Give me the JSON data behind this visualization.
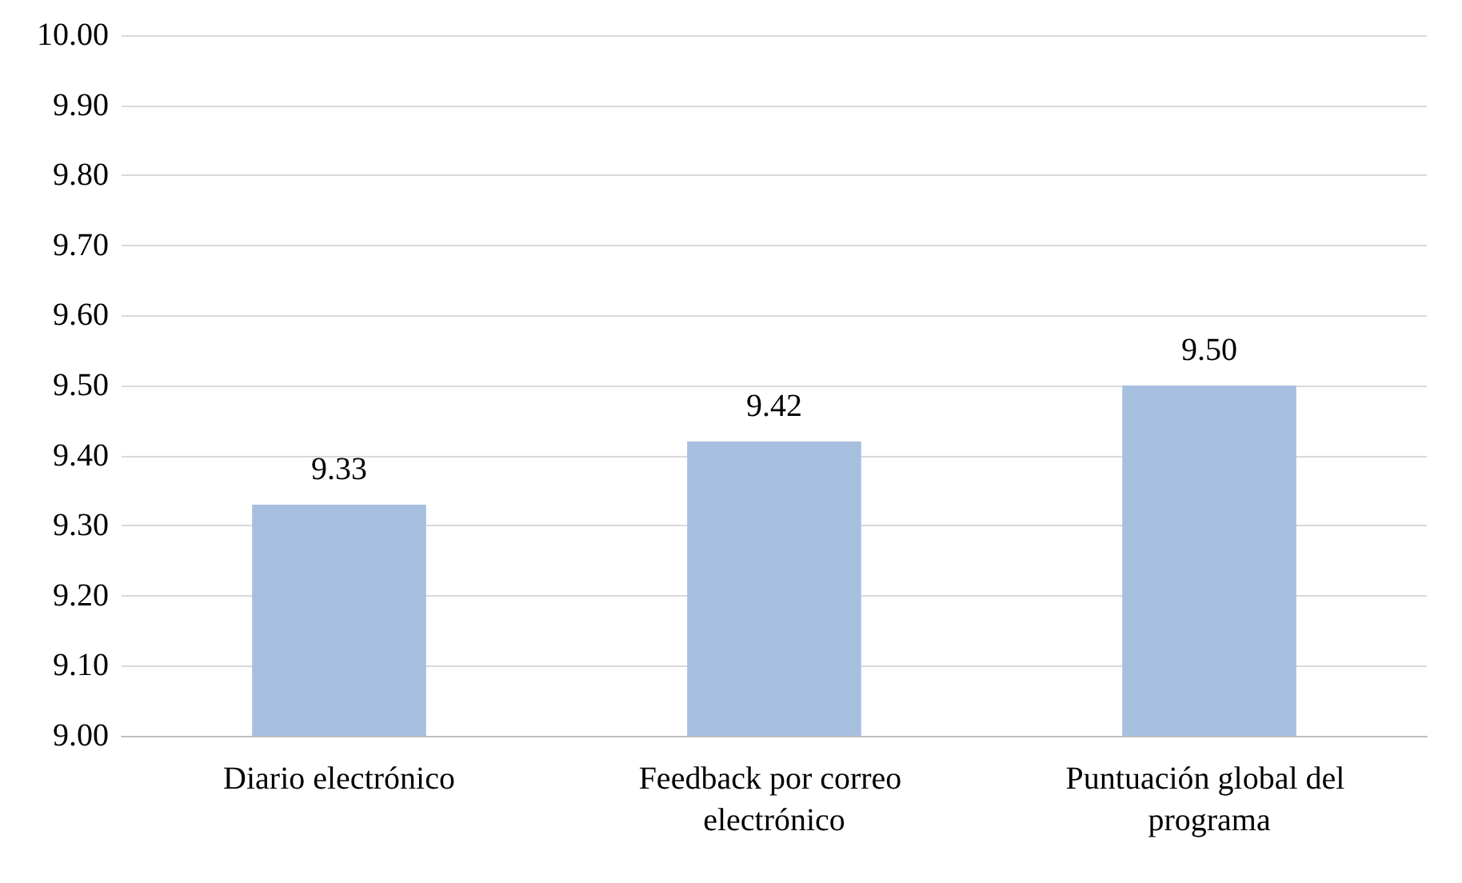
{
  "chart_data": {
    "type": "bar",
    "categories": [
      "Diario electrónico",
      "Feedback por correo electrónico",
      "Puntuación global del programa"
    ],
    "values": [
      9.33,
      9.42,
      9.5
    ],
    "value_labels": [
      "9.33",
      "9.42",
      "9.50"
    ],
    "color": "#a7bfdf",
    "ylim": [
      9,
      10
    ],
    "yticks": [
      {
        "value": 9,
        "label": "9.00"
      },
      {
        "value": 9.1,
        "label": "9.10"
      },
      {
        "value": 9.2,
        "label": "9.20"
      },
      {
        "value": 9.3,
        "label": "9.30"
      },
      {
        "value": 9.4,
        "label": "9.40"
      },
      {
        "value": 9.5,
        "label": "9.50"
      },
      {
        "value": 9.6,
        "label": "9.60"
      },
      {
        "value": 9.7,
        "label": "9.70"
      },
      {
        "value": 9.8,
        "label": "9.80"
      },
      {
        "value": 9.9,
        "label": "9.90"
      },
      {
        "value": 10,
        "label": "10.00"
      }
    ],
    "grid": "y"
  }
}
